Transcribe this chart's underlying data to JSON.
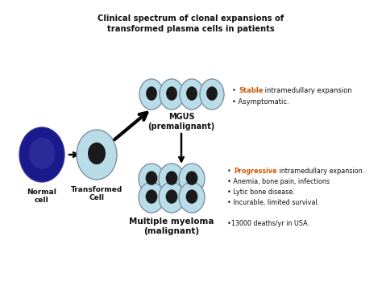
{
  "title_line1": "Clinical spectrum of clonal expansions of",
  "title_line2": "transformed plasma cells in patients",
  "bg_color": "#f0ede8",
  "normal_cell_color": "#1a1a8c",
  "normal_nucleus_color": "#2a2a99",
  "transformed_cell_color": "#b8dde8",
  "nucleus_color": "#1a1a1a",
  "mgus_cell_color": "#b8dde8",
  "myeloma_cell_color": "#b8dde8",
  "cell_edge_color": "#778899",
  "normal_label": "Normal\ncell",
  "transformed_label": "Transformed\nCell",
  "mgus_label": "MGUS\n(premalignant)",
  "myeloma_label": "Multiple myeloma\n(malignant)",
  "stable_color": "#cc5500",
  "progressive_color": "#cc5500",
  "white_bg": "#ffffff"
}
